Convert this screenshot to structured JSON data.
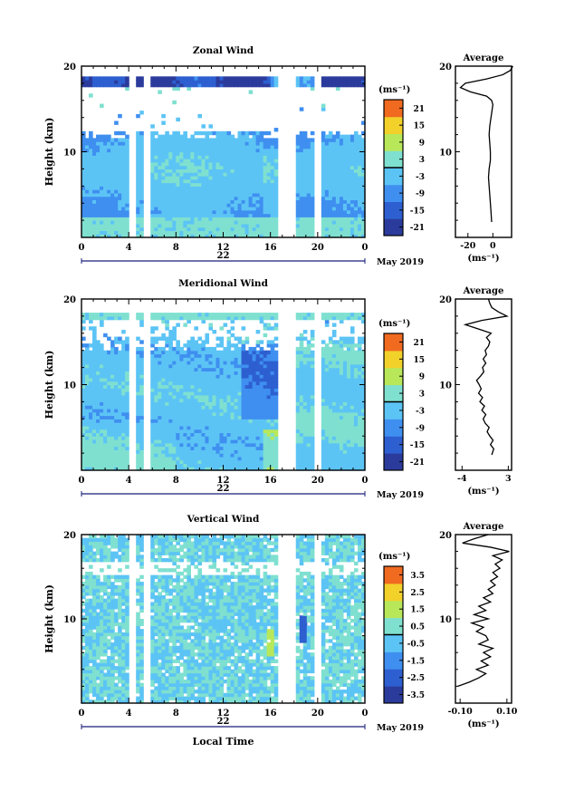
{
  "chart_data": [
    {
      "type": "heatmap",
      "title": "Zonal Wind",
      "ylabel": "Height (km)",
      "unit_label": "(ms⁻¹)",
      "ylim": [
        0,
        20
      ],
      "y_ticks": [
        "20",
        "10"
      ],
      "x_ticks": [
        "0",
        "4",
        "8",
        "12",
        "16",
        "20",
        "0"
      ],
      "date_tick": "22",
      "month_label": "May 2019",
      "colorbar_ticks": [
        "21",
        "15",
        "9",
        "3",
        "-3",
        "-9",
        "-15",
        "-21"
      ],
      "colorbar_range": [
        -24,
        24
      ],
      "gaps_hours": [
        4.4,
        5.5,
        17.0,
        17.7,
        20.0
      ],
      "average_profile": {
        "title": "Average",
        "x_ticks": [
          "-20",
          "0"
        ],
        "xlim": [
          -30,
          15
        ],
        "xlabel": "(ms⁻¹)",
        "y_ticks": [
          "20",
          "10"
        ],
        "height_km": [
          1.8,
          3,
          4,
          5,
          6,
          7,
          8,
          9,
          10,
          11,
          12,
          13,
          14,
          15,
          15.5,
          16,
          16.5,
          17,
          17.5,
          18,
          18.5,
          19,
          19.5,
          20
        ],
        "value": [
          -1,
          -1.5,
          -2,
          -2.5,
          -3,
          -3.5,
          -3,
          -2,
          -2,
          -2.5,
          -3,
          -2.5,
          -1.5,
          -0.5,
          0,
          -1,
          -5,
          -18,
          -26,
          -22,
          -5,
          8,
          14,
          16
        ]
      }
    },
    {
      "type": "heatmap",
      "title": "Meridional Wind",
      "ylabel": "Height (km)",
      "unit_label": "(ms⁻¹)",
      "ylim": [
        0,
        20
      ],
      "y_ticks": [
        "20",
        "10"
      ],
      "x_ticks": [
        "0",
        "4",
        "8",
        "12",
        "16",
        "20",
        "0"
      ],
      "date_tick": "22",
      "month_label": "May 2019",
      "colorbar_ticks": [
        "21",
        "15",
        "9",
        "3",
        "-3",
        "-9",
        "-15",
        "-21"
      ],
      "colorbar_range": [
        -24,
        24
      ],
      "gaps_hours": [
        4.4,
        5.5,
        17.0,
        17.7,
        20.0
      ],
      "average_profile": {
        "title": "Average",
        "x_ticks": [
          "-4",
          "3"
        ],
        "xlim": [
          -5,
          3.5
        ],
        "xlabel": "(ms⁻¹)",
        "y_ticks": [
          "20",
          "10"
        ],
        "height_km": [
          1.8,
          2.5,
          3,
          3.5,
          4,
          4.5,
          5,
          5.5,
          6,
          6.5,
          7,
          7.5,
          8,
          8.5,
          9,
          9.5,
          10,
          10.5,
          11,
          11.5,
          12,
          12.5,
          13,
          13.5,
          14,
          14.5,
          15,
          15.5,
          16,
          16.5,
          17,
          17.5,
          18,
          18.5,
          19,
          19.5,
          20
        ],
        "value": [
          0.5,
          0.8,
          0.3,
          0.7,
          0.2,
          -0.2,
          0.1,
          -0.5,
          -0.8,
          -0.4,
          -1.0,
          -0.6,
          -1.3,
          -0.9,
          -1.5,
          -1.1,
          -1.4,
          -1.8,
          -1.2,
          -0.7,
          -0.9,
          -0.4,
          -0.8,
          -0.3,
          -0.5,
          0.0,
          0.2,
          -0.3,
          0.4,
          -1.5,
          -3.5,
          -1.0,
          2.8,
          1.5,
          0.5,
          0.2,
          0.0
        ]
      }
    },
    {
      "type": "heatmap",
      "title": "Vertical Wind",
      "ylabel": "Height (km)",
      "xlabel": "Local Time",
      "unit_label": "(ms⁻¹)",
      "ylim": [
        0,
        20
      ],
      "y_ticks": [
        "20",
        "10"
      ],
      "x_ticks": [
        "0",
        "4",
        "8",
        "12",
        "16",
        "20",
        "0"
      ],
      "date_tick": "22",
      "month_label": "May 2019",
      "colorbar_ticks": [
        "3.5",
        "2.5",
        "1.5",
        "0.5",
        "-0.5",
        "-1.5",
        "-2.5",
        "-3.5"
      ],
      "colorbar_range": [
        -4,
        4
      ],
      "gaps_hours": [
        4.4,
        5.5,
        17.0,
        17.7,
        20.0
      ],
      "average_profile": {
        "title": "Average",
        "x_ticks": [
          "-0.10",
          "0.10"
        ],
        "xlim": [
          -0.12,
          0.12
        ],
        "xlabel": "(ms⁻¹)",
        "y_ticks": [
          "20",
          "10"
        ],
        "height_km": [
          2,
          2.5,
          3,
          3.5,
          4,
          4.5,
          5,
          5.5,
          6,
          6.5,
          7,
          7.5,
          8,
          8.5,
          9,
          9.5,
          10,
          10.5,
          11,
          11.5,
          12,
          12.5,
          13,
          13.5,
          14,
          14.5,
          15,
          15.5,
          16,
          16.5,
          17,
          17.5,
          18,
          18.5,
          19,
          19.5,
          20
        ],
        "value": [
          -0.11,
          -0.06,
          -0.02,
          0.01,
          -0.03,
          0.02,
          -0.01,
          0.03,
          0.0,
          0.04,
          -0.02,
          0.02,
          0.01,
          -0.03,
          0.0,
          -0.05,
          0.02,
          -0.04,
          0.01,
          -0.02,
          0.03,
          0.0,
          0.04,
          0.02,
          0.05,
          0.03,
          0.06,
          0.04,
          0.07,
          0.05,
          0.08,
          0.04,
          0.11,
          0.03,
          -0.09,
          -0.04,
          0.02
        ]
      }
    }
  ]
}
